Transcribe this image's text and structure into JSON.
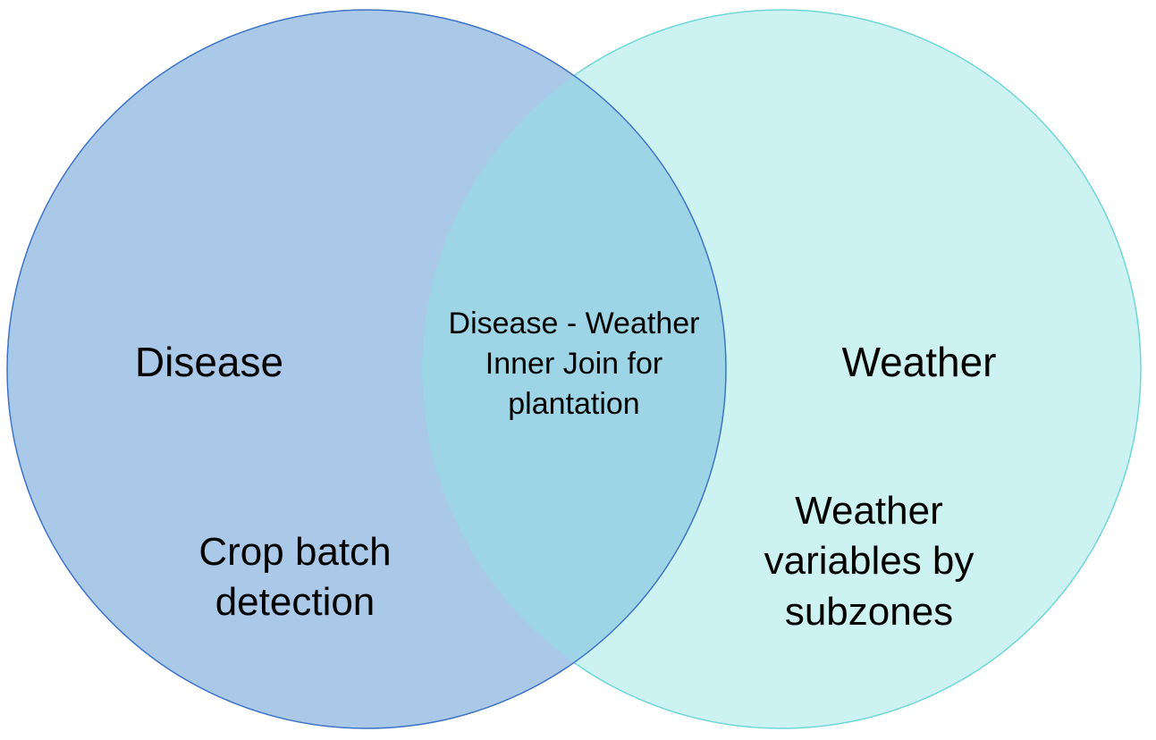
{
  "colors": {
    "left_fill": "#aac8e8",
    "left_stroke": "#3d74c6",
    "right_fill": "#ccf3f2",
    "right_stroke": "#6fd6d8",
    "overlap_fill": "#9dd4e6",
    "text": "#000000"
  },
  "left_set": {
    "title": "Disease",
    "description_lines": [
      "Crop batch",
      "detection"
    ]
  },
  "right_set": {
    "title": "Weather",
    "description_lines": [
      "Weather",
      "variables by",
      "subzones"
    ]
  },
  "intersection": {
    "lines": [
      "Disease - Weather",
      "Inner Join for",
      "plantation"
    ]
  }
}
